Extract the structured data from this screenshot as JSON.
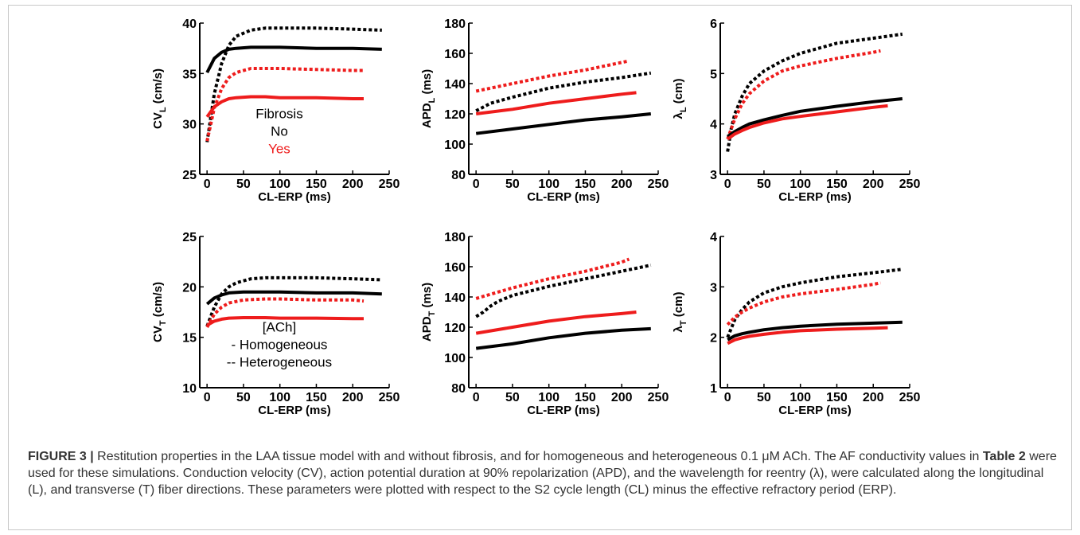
{
  "figure": {
    "caption_label": "FIGURE 3 |",
    "caption_part1": " Restitution properties in the LAA tissue model with and without fibrosis, and for homogeneous and heterogeneous 0.1 μM ACh. The AF conductivity values in ",
    "caption_table_ref": "Table 2",
    "caption_part2": " were used for these simulations. Conduction velocity (CV), action potential duration at 90% repolarization (APD), and the wavelength for reentry (λ), were calculated along the longitudinal (L), and transverse (T) fiber directions. These parameters were plotted with respect to the S2 cycle length (CL) minus the effective refractory period (ERP)."
  },
  "colors": {
    "black_series": "#000000",
    "red_series": "#ee1c1c"
  },
  "chart_data": [
    {
      "type": "line",
      "id": "cv-l",
      "ylabel_main": "CV",
      "ylabel_sub": "L",
      "ylabel_unit": " (cm/s)",
      "xlabel": "CL-ERP (ms)",
      "xlim": [
        -10,
        250
      ],
      "ylim": [
        25,
        40
      ],
      "xticks": [
        0,
        50,
        100,
        150,
        200,
        250
      ],
      "yticks": [
        25,
        30,
        35,
        40
      ],
      "legend": {
        "title": "Fibrosis",
        "items": [
          {
            "label": "No",
            "color": "#000000"
          },
          {
            "label": "Yes",
            "color": "#ee1c1c"
          }
        ]
      },
      "series": [
        {
          "color": "#000000",
          "style": "dotted",
          "x": [
            0,
            10,
            20,
            30,
            40,
            60,
            80,
            100,
            150,
            200,
            240
          ],
          "y": [
            28.2,
            33.0,
            36.0,
            37.8,
            38.7,
            39.3,
            39.5,
            39.5,
            39.5,
            39.4,
            39.3
          ]
        },
        {
          "color": "#000000",
          "style": "solid",
          "x": [
            0,
            10,
            20,
            30,
            40,
            60,
            80,
            100,
            150,
            200,
            240
          ],
          "y": [
            35.1,
            36.5,
            37.1,
            37.4,
            37.5,
            37.6,
            37.6,
            37.6,
            37.5,
            37.5,
            37.4
          ]
        },
        {
          "color": "#ee1c1c",
          "style": "dotted",
          "x": [
            0,
            10,
            20,
            30,
            40,
            60,
            80,
            100,
            150,
            200,
            215
          ],
          "y": [
            28.3,
            31.6,
            33.5,
            34.6,
            35.1,
            35.5,
            35.5,
            35.5,
            35.4,
            35.3,
            35.3
          ]
        },
        {
          "color": "#ee1c1c",
          "style": "solid",
          "x": [
            0,
            10,
            20,
            30,
            40,
            60,
            80,
            100,
            150,
            200,
            215
          ],
          "y": [
            30.7,
            31.7,
            32.2,
            32.5,
            32.6,
            32.7,
            32.7,
            32.6,
            32.6,
            32.5,
            32.5
          ]
        }
      ]
    },
    {
      "type": "line",
      "id": "apd-l",
      "ylabel_main": "APD",
      "ylabel_sub": "L",
      "ylabel_unit": " (ms)",
      "xlabel": "CL-ERP (ms)",
      "xlim": [
        -10,
        250
      ],
      "ylim": [
        80,
        180
      ],
      "xticks": [
        0,
        50,
        100,
        150,
        200,
        250
      ],
      "yticks": [
        80,
        100,
        120,
        140,
        160,
        180
      ],
      "series": [
        {
          "color": "#ee1c1c",
          "style": "dotted",
          "x": [
            0,
            50,
            100,
            150,
            200,
            210
          ],
          "y": [
            135,
            140,
            145,
            149,
            154,
            155
          ]
        },
        {
          "color": "#000000",
          "style": "dotted",
          "x": [
            0,
            20,
            50,
            100,
            150,
            200,
            240
          ],
          "y": [
            122,
            127,
            131,
            137,
            141,
            144,
            147
          ]
        },
        {
          "color": "#ee1c1c",
          "style": "solid",
          "x": [
            0,
            50,
            100,
            150,
            200,
            220
          ],
          "y": [
            120,
            123,
            127,
            130,
            133,
            134
          ]
        },
        {
          "color": "#000000",
          "style": "solid",
          "x": [
            0,
            50,
            100,
            150,
            200,
            240
          ],
          "y": [
            107,
            110,
            113,
            116,
            118,
            120
          ]
        }
      ]
    },
    {
      "type": "line",
      "id": "lambda-l",
      "ylabel_main": "λ",
      "ylabel_sub": "L",
      "ylabel_unit": " (cm)",
      "xlabel": "CL-ERP (ms)",
      "xlim": [
        -10,
        250
      ],
      "ylim": [
        3,
        6
      ],
      "xticks": [
        0,
        50,
        100,
        150,
        200,
        250
      ],
      "yticks": [
        3,
        4,
        5,
        6
      ],
      "series": [
        {
          "color": "#000000",
          "style": "dotted",
          "x": [
            0,
            5,
            10,
            20,
            30,
            50,
            75,
            100,
            150,
            200,
            240
          ],
          "y": [
            3.45,
            3.9,
            4.2,
            4.55,
            4.8,
            5.05,
            5.25,
            5.4,
            5.6,
            5.7,
            5.78
          ]
        },
        {
          "color": "#ee1c1c",
          "style": "dotted",
          "x": [
            0,
            10,
            20,
            30,
            50,
            75,
            100,
            150,
            200,
            210
          ],
          "y": [
            3.7,
            4.1,
            4.4,
            4.6,
            4.85,
            5.05,
            5.15,
            5.3,
            5.42,
            5.45
          ]
        },
        {
          "color": "#000000",
          "style": "solid",
          "x": [
            0,
            10,
            20,
            30,
            50,
            75,
            100,
            150,
            200,
            240
          ],
          "y": [
            3.75,
            3.85,
            3.93,
            4.0,
            4.08,
            4.17,
            4.25,
            4.35,
            4.44,
            4.5
          ]
        },
        {
          "color": "#ee1c1c",
          "style": "solid",
          "x": [
            0,
            10,
            20,
            30,
            50,
            75,
            100,
            150,
            200,
            220
          ],
          "y": [
            3.7,
            3.8,
            3.87,
            3.93,
            4.02,
            4.1,
            4.15,
            4.24,
            4.33,
            4.36
          ]
        }
      ]
    },
    {
      "type": "line",
      "id": "cv-t",
      "ylabel_main": "CV",
      "ylabel_sub": "T",
      "ylabel_unit": " (cm/s)",
      "xlabel": "CL-ERP (ms)",
      "xlim": [
        -10,
        250
      ],
      "ylim": [
        10,
        25
      ],
      "xticks": [
        0,
        50,
        100,
        150,
        200,
        250
      ],
      "yticks": [
        10,
        15,
        20,
        25
      ],
      "legend": {
        "title": "[ACh]",
        "items": [
          {
            "label": "- Homogeneous",
            "color": "#000000"
          },
          {
            "label": "-- Heterogeneous",
            "color": "#000000"
          }
        ]
      },
      "series": [
        {
          "color": "#000000",
          "style": "dotted",
          "x": [
            0,
            10,
            20,
            30,
            40,
            60,
            80,
            100,
            150,
            200,
            240
          ],
          "y": [
            16.1,
            18.0,
            19.3,
            20.0,
            20.4,
            20.8,
            20.9,
            20.9,
            20.9,
            20.8,
            20.7
          ]
        },
        {
          "color": "#000000",
          "style": "solid",
          "x": [
            0,
            10,
            20,
            30,
            50,
            80,
            100,
            150,
            200,
            240
          ],
          "y": [
            18.3,
            18.9,
            19.2,
            19.4,
            19.5,
            19.5,
            19.5,
            19.4,
            19.4,
            19.3
          ]
        },
        {
          "color": "#ee1c1c",
          "style": "dotted",
          "x": [
            0,
            10,
            20,
            30,
            50,
            80,
            100,
            150,
            200,
            215
          ],
          "y": [
            16.0,
            17.3,
            18.0,
            18.4,
            18.7,
            18.8,
            18.8,
            18.7,
            18.7,
            18.6
          ]
        },
        {
          "color": "#ee1c1c",
          "style": "solid",
          "x": [
            0,
            10,
            20,
            30,
            50,
            80,
            100,
            150,
            200,
            215
          ],
          "y": [
            16.2,
            16.6,
            16.8,
            16.9,
            16.95,
            16.95,
            16.9,
            16.9,
            16.85,
            16.85
          ]
        }
      ]
    },
    {
      "type": "line",
      "id": "apd-t",
      "ylabel_main": "APD",
      "ylabel_sub": "T",
      "ylabel_unit": " (ms)",
      "xlabel": "CL-ERP (ms)",
      "xlim": [
        -10,
        250
      ],
      "ylim": [
        80,
        180
      ],
      "xticks": [
        0,
        50,
        100,
        150,
        200,
        250
      ],
      "yticks": [
        80,
        100,
        120,
        140,
        160,
        180
      ],
      "series": [
        {
          "color": "#ee1c1c",
          "style": "dotted",
          "x": [
            0,
            50,
            100,
            150,
            200,
            210
          ],
          "y": [
            139,
            146,
            152,
            157,
            163,
            165
          ]
        },
        {
          "color": "#000000",
          "style": "dotted",
          "x": [
            0,
            10,
            20,
            30,
            50,
            100,
            150,
            200,
            240
          ],
          "y": [
            127,
            130,
            134,
            137,
            141,
            147,
            152,
            157,
            161
          ]
        },
        {
          "color": "#ee1c1c",
          "style": "solid",
          "x": [
            0,
            50,
            100,
            150,
            200,
            220
          ],
          "y": [
            116,
            120,
            124,
            127,
            129,
            130
          ]
        },
        {
          "color": "#000000",
          "style": "solid",
          "x": [
            0,
            50,
            100,
            150,
            200,
            240
          ],
          "y": [
            106,
            109,
            113,
            116,
            118,
            119
          ]
        }
      ]
    },
    {
      "type": "line",
      "id": "lambda-t",
      "ylabel_main": "λ",
      "ylabel_sub": "T",
      "ylabel_unit": " (cm)",
      "xlabel": "CL-ERP (ms)",
      "xlim": [
        -10,
        250
      ],
      "ylim": [
        1,
        4
      ],
      "xticks": [
        0,
        50,
        100,
        150,
        200,
        250
      ],
      "yticks": [
        1,
        2,
        3,
        4
      ],
      "series": [
        {
          "color": "#000000",
          "style": "dotted",
          "x": [
            0,
            10,
            20,
            30,
            50,
            75,
            100,
            150,
            200,
            240
          ],
          "y": [
            2.0,
            2.35,
            2.55,
            2.7,
            2.88,
            3.0,
            3.08,
            3.2,
            3.28,
            3.35
          ]
        },
        {
          "color": "#ee1c1c",
          "style": "dotted",
          "x": [
            0,
            10,
            20,
            30,
            50,
            75,
            100,
            150,
            200,
            210
          ],
          "y": [
            2.25,
            2.4,
            2.5,
            2.58,
            2.7,
            2.8,
            2.86,
            2.95,
            3.05,
            3.08
          ]
        },
        {
          "color": "#000000",
          "style": "solid",
          "x": [
            0,
            10,
            20,
            30,
            50,
            75,
            100,
            150,
            200,
            240
          ],
          "y": [
            1.95,
            2.03,
            2.07,
            2.1,
            2.15,
            2.19,
            2.22,
            2.26,
            2.28,
            2.3
          ]
        },
        {
          "color": "#ee1c1c",
          "style": "solid",
          "x": [
            0,
            10,
            20,
            30,
            50,
            75,
            100,
            150,
            200,
            220
          ],
          "y": [
            1.88,
            1.95,
            1.99,
            2.02,
            2.06,
            2.1,
            2.13,
            2.16,
            2.18,
            2.19
          ]
        }
      ]
    }
  ]
}
